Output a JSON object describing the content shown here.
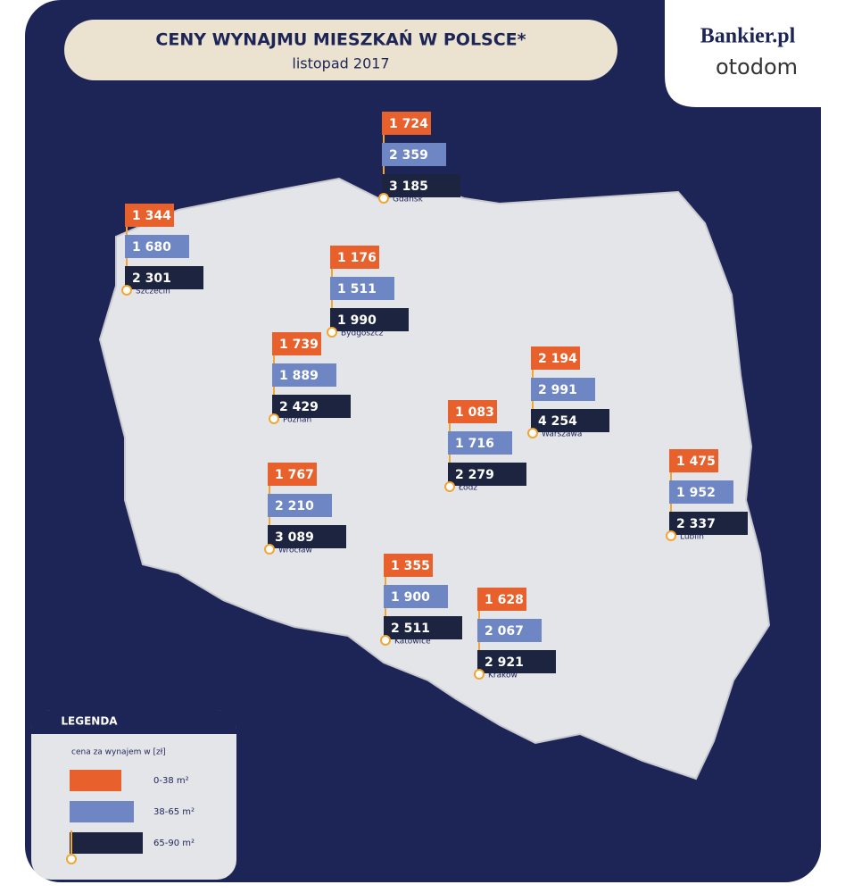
{
  "header": {
    "title": "CENY WYNAJMU MIESZKAŃ W POLSCE*",
    "subtitle": "listopad 2017"
  },
  "logos": {
    "bankier": "Bankier.pl",
    "otodom": "otodom"
  },
  "cities": [
    {
      "name": "Gdańsk",
      "prices": [
        "1 724",
        "2 359",
        "3 185"
      ]
    },
    {
      "name": "Szczecin",
      "prices": [
        "1 344",
        "1 680",
        "2 301"
      ]
    },
    {
      "name": "Bydgoszcz",
      "prices": [
        "1 176",
        "1 511",
        "1 990"
      ]
    },
    {
      "name": "Poznań",
      "prices": [
        "1 739",
        "1 889",
        "2 429"
      ]
    },
    {
      "name": "Warszawa",
      "prices": [
        "2 194",
        "2 991",
        "4 254"
      ]
    },
    {
      "name": "Łódź",
      "prices": [
        "1 083",
        "1 716",
        "2 279"
      ]
    },
    {
      "name": "Lublin",
      "prices": [
        "1 475",
        "1 952",
        "2 337"
      ]
    },
    {
      "name": "Wrocław",
      "prices": [
        "1 767",
        "2 210",
        "3 089"
      ]
    },
    {
      "name": "Katowice",
      "prices": [
        "1 355",
        "1 900",
        "2 511"
      ]
    },
    {
      "name": "Kraków",
      "prices": [
        "1 628",
        "2 067",
        "2 921"
      ]
    }
  ],
  "legend": {
    "title": "LEGENDA",
    "caption": "cena za wynajem w [zł]",
    "items": [
      "0-38 m²",
      "38-65 m²",
      "65-90 m²"
    ]
  }
}
